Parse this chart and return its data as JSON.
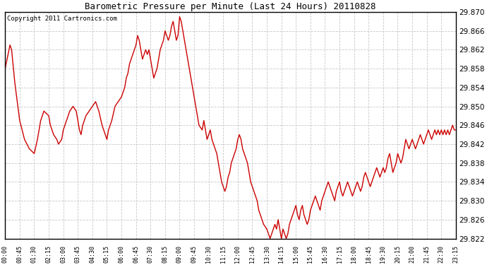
{
  "title": "Barometric Pressure per Minute (Last 24 Hours) 20110828",
  "copyright": "Copyright 2011 Cartronics.com",
  "line_color": "#cc0000",
  "background_color": "#ffffff",
  "grid_color": "#c8c8c8",
  "ylim": [
    29.822,
    29.87
  ],
  "yticks": [
    29.822,
    29.826,
    29.83,
    29.834,
    29.838,
    29.842,
    29.846,
    29.85,
    29.854,
    29.858,
    29.862,
    29.866,
    29.87
  ],
  "xtick_labels": [
    "00:00",
    "00:45",
    "01:30",
    "02:15",
    "03:00",
    "03:45",
    "04:30",
    "05:15",
    "06:00",
    "06:45",
    "07:30",
    "08:15",
    "09:00",
    "09:45",
    "10:30",
    "11:15",
    "12:00",
    "12:45",
    "13:30",
    "14:15",
    "15:00",
    "15:45",
    "16:30",
    "17:15",
    "18:00",
    "18:45",
    "19:30",
    "20:15",
    "21:00",
    "21:45",
    "22:30",
    "23:15"
  ],
  "pressure_data": [
    [
      0,
      29.858
    ],
    [
      15,
      29.863
    ],
    [
      20,
      29.862
    ],
    [
      30,
      29.855
    ],
    [
      45,
      29.847
    ],
    [
      60,
      29.843
    ],
    [
      75,
      29.841
    ],
    [
      90,
      29.84
    ],
    [
      100,
      29.843
    ],
    [
      110,
      29.847
    ],
    [
      120,
      29.849
    ],
    [
      135,
      29.848
    ],
    [
      140,
      29.846
    ],
    [
      150,
      29.844
    ],
    [
      160,
      29.843
    ],
    [
      165,
      29.842
    ],
    [
      175,
      29.843
    ],
    [
      180,
      29.845
    ],
    [
      190,
      29.847
    ],
    [
      200,
      29.849
    ],
    [
      210,
      29.85
    ],
    [
      220,
      29.849
    ],
    [
      225,
      29.847
    ],
    [
      230,
      29.845
    ],
    [
      235,
      29.844
    ],
    [
      240,
      29.846
    ],
    [
      250,
      29.848
    ],
    [
      260,
      29.849
    ],
    [
      270,
      29.85
    ],
    [
      280,
      29.851
    ],
    [
      290,
      29.849
    ],
    [
      300,
      29.846
    ],
    [
      310,
      29.844
    ],
    [
      315,
      29.843
    ],
    [
      320,
      29.845
    ],
    [
      330,
      29.847
    ],
    [
      340,
      29.85
    ],
    [
      350,
      29.851
    ],
    [
      360,
      29.852
    ],
    [
      370,
      29.854
    ],
    [
      375,
      29.856
    ],
    [
      380,
      29.857
    ],
    [
      385,
      29.859
    ],
    [
      390,
      29.86
    ],
    [
      400,
      29.862
    ],
    [
      405,
      29.863
    ],
    [
      410,
      29.865
    ],
    [
      415,
      29.864
    ],
    [
      420,
      29.862
    ],
    [
      425,
      29.86
    ],
    [
      430,
      29.861
    ],
    [
      435,
      29.862
    ],
    [
      440,
      29.861
    ],
    [
      445,
      29.862
    ],
    [
      450,
      29.86
    ],
    [
      455,
      29.858
    ],
    [
      460,
      29.856
    ],
    [
      465,
      29.857
    ],
    [
      470,
      29.858
    ],
    [
      475,
      29.86
    ],
    [
      480,
      29.862
    ],
    [
      490,
      29.864
    ],
    [
      495,
      29.866
    ],
    [
      500,
      29.865
    ],
    [
      505,
      29.864
    ],
    [
      510,
      29.865
    ],
    [
      515,
      29.867
    ],
    [
      520,
      29.868
    ],
    [
      525,
      29.866
    ],
    [
      530,
      29.864
    ],
    [
      535,
      29.865
    ],
    [
      540,
      29.869
    ],
    [
      545,
      29.868
    ],
    [
      550,
      29.866
    ],
    [
      555,
      29.864
    ],
    [
      560,
      29.862
    ],
    [
      565,
      29.86
    ],
    [
      570,
      29.858
    ],
    [
      575,
      29.856
    ],
    [
      580,
      29.854
    ],
    [
      585,
      29.852
    ],
    [
      590,
      29.85
    ],
    [
      595,
      29.848
    ],
    [
      600,
      29.846
    ],
    [
      610,
      29.845
    ],
    [
      615,
      29.847
    ],
    [
      620,
      29.845
    ],
    [
      625,
      29.843
    ],
    [
      630,
      29.844
    ],
    [
      635,
      29.845
    ],
    [
      640,
      29.843
    ],
    [
      645,
      29.842
    ],
    [
      650,
      29.841
    ],
    [
      655,
      29.84
    ],
    [
      660,
      29.838
    ],
    [
      665,
      29.836
    ],
    [
      670,
      29.834
    ],
    [
      675,
      29.833
    ],
    [
      680,
      29.832
    ],
    [
      685,
      29.833
    ],
    [
      690,
      29.835
    ],
    [
      695,
      29.836
    ],
    [
      700,
      29.838
    ],
    [
      705,
      29.839
    ],
    [
      710,
      29.84
    ],
    [
      715,
      29.841
    ],
    [
      720,
      29.843
    ],
    [
      725,
      29.844
    ],
    [
      730,
      29.843
    ],
    [
      735,
      29.841
    ],
    [
      740,
      29.84
    ],
    [
      745,
      29.839
    ],
    [
      750,
      29.838
    ],
    [
      755,
      29.836
    ],
    [
      760,
      29.834
    ],
    [
      765,
      29.833
    ],
    [
      770,
      29.832
    ],
    [
      775,
      29.831
    ],
    [
      780,
      29.83
    ],
    [
      785,
      29.828
    ],
    [
      790,
      29.827
    ],
    [
      795,
      29.826
    ],
    [
      800,
      29.825
    ],
    [
      810,
      29.824
    ],
    [
      815,
      29.823
    ],
    [
      820,
      29.822
    ],
    [
      825,
      29.823
    ],
    [
      830,
      29.824
    ],
    [
      835,
      29.825
    ],
    [
      840,
      29.824
    ],
    [
      845,
      29.826
    ],
    [
      850,
      29.824
    ],
    [
      855,
      29.822
    ],
    [
      860,
      29.824
    ],
    [
      865,
      29.823
    ],
    [
      870,
      29.822
    ],
    [
      875,
      29.823
    ],
    [
      880,
      29.825
    ],
    [
      885,
      29.826
    ],
    [
      890,
      29.827
    ],
    [
      895,
      29.828
    ],
    [
      900,
      29.829
    ],
    [
      905,
      29.827
    ],
    [
      910,
      29.826
    ],
    [
      915,
      29.828
    ],
    [
      920,
      29.829
    ],
    [
      925,
      29.827
    ],
    [
      930,
      29.826
    ],
    [
      935,
      29.825
    ],
    [
      940,
      29.826
    ],
    [
      945,
      29.828
    ],
    [
      950,
      29.829
    ],
    [
      955,
      29.83
    ],
    [
      960,
      29.831
    ],
    [
      965,
      29.83
    ],
    [
      970,
      29.829
    ],
    [
      975,
      29.828
    ],
    [
      980,
      29.83
    ],
    [
      985,
      29.831
    ],
    [
      990,
      29.832
    ],
    [
      995,
      29.833
    ],
    [
      1000,
      29.834
    ],
    [
      1005,
      29.833
    ],
    [
      1010,
      29.832
    ],
    [
      1015,
      29.831
    ],
    [
      1020,
      29.83
    ],
    [
      1025,
      29.832
    ],
    [
      1030,
      29.833
    ],
    [
      1035,
      29.834
    ],
    [
      1040,
      29.832
    ],
    [
      1045,
      29.831
    ],
    [
      1050,
      29.832
    ],
    [
      1055,
      29.833
    ],
    [
      1060,
      29.834
    ],
    [
      1065,
      29.833
    ],
    [
      1070,
      29.832
    ],
    [
      1075,
      29.831
    ],
    [
      1080,
      29.832
    ],
    [
      1085,
      29.833
    ],
    [
      1090,
      29.834
    ],
    [
      1095,
      29.833
    ],
    [
      1100,
      29.832
    ],
    [
      1105,
      29.833
    ],
    [
      1110,
      29.835
    ],
    [
      1115,
      29.836
    ],
    [
      1120,
      29.835
    ],
    [
      1125,
      29.834
    ],
    [
      1130,
      29.833
    ],
    [
      1135,
      29.834
    ],
    [
      1140,
      29.835
    ],
    [
      1145,
      29.836
    ],
    [
      1150,
      29.837
    ],
    [
      1155,
      29.836
    ],
    [
      1160,
      29.835
    ],
    [
      1165,
      29.836
    ],
    [
      1170,
      29.837
    ],
    [
      1175,
      29.836
    ],
    [
      1180,
      29.837
    ],
    [
      1185,
      29.839
    ],
    [
      1190,
      29.84
    ],
    [
      1195,
      29.838
    ],
    [
      1200,
      29.836
    ],
    [
      1205,
      29.837
    ],
    [
      1210,
      29.838
    ],
    [
      1215,
      29.84
    ],
    [
      1220,
      29.839
    ],
    [
      1225,
      29.838
    ],
    [
      1230,
      29.839
    ],
    [
      1235,
      29.841
    ],
    [
      1240,
      29.843
    ],
    [
      1245,
      29.842
    ],
    [
      1250,
      29.841
    ],
    [
      1255,
      29.842
    ],
    [
      1260,
      29.843
    ],
    [
      1265,
      29.842
    ],
    [
      1270,
      29.841
    ],
    [
      1275,
      29.842
    ],
    [
      1280,
      29.843
    ],
    [
      1285,
      29.844
    ],
    [
      1290,
      29.843
    ],
    [
      1295,
      29.842
    ],
    [
      1300,
      29.843
    ],
    [
      1305,
      29.844
    ],
    [
      1310,
      29.845
    ],
    [
      1315,
      29.844
    ],
    [
      1320,
      29.843
    ],
    [
      1325,
      29.844
    ],
    [
      1330,
      29.845
    ],
    [
      1335,
      29.844
    ],
    [
      1340,
      29.845
    ],
    [
      1345,
      29.844
    ],
    [
      1350,
      29.845
    ],
    [
      1355,
      29.844
    ],
    [
      1360,
      29.845
    ],
    [
      1365,
      29.844
    ],
    [
      1370,
      29.845
    ],
    [
      1375,
      29.844
    ],
    [
      1380,
      29.845
    ],
    [
      1385,
      29.846
    ],
    [
      1390,
      29.845
    ],
    [
      1395,
      29.845
    ]
  ],
  "figsize": [
    6.9,
    3.75
  ],
  "dpi": 100
}
